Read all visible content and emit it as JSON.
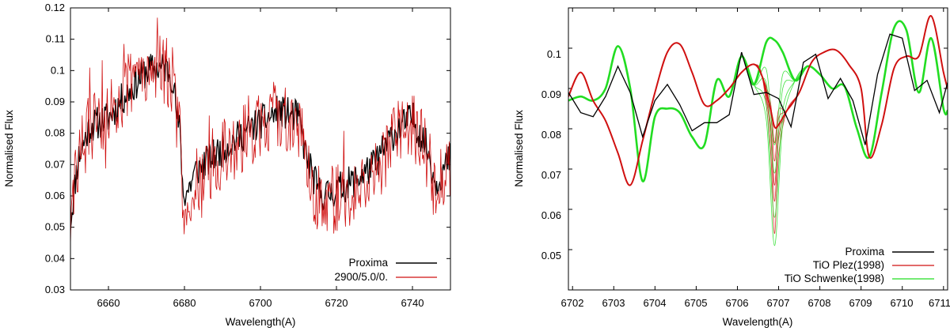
{
  "colors": {
    "black": "#000000",
    "red": "#d01010",
    "green": "#22dd22",
    "frame": "#000000"
  },
  "chart_data": [
    {
      "id": "left",
      "type": "line",
      "title": "",
      "xlabel": "Wavelength(A)",
      "ylabel": "Normalised Flux",
      "xlim": [
        6650,
        6750
      ],
      "ylim": [
        0.03,
        0.12
      ],
      "xticks": [
        6660,
        6680,
        6700,
        6720,
        6740
      ],
      "xtick_labels": [
        "6660",
        "6680",
        "6700",
        "6720",
        "6740"
      ],
      "yticks": [
        0.03,
        0.04,
        0.05,
        0.06,
        0.07,
        0.08,
        0.09,
        0.1,
        0.11,
        0.12
      ],
      "ytick_labels": [
        "0.03",
        "0.04",
        "0.05",
        "0.06",
        "0.07",
        "0.08",
        "0.09",
        "0.1",
        "0.11",
        "0.12"
      ],
      "legend_position": "bottom-right",
      "series": [
        {
          "name": "Proxima",
          "color": "#000000",
          "anchors": [
            [
              6650,
              0.052
            ],
            [
              6652,
              0.072
            ],
            [
              6655,
              0.082
            ],
            [
              6660,
              0.085
            ],
            [
              6665,
              0.093
            ],
            [
              6670,
              0.1
            ],
            [
              6675,
              0.101
            ],
            [
              6677,
              0.098
            ],
            [
              6678,
              0.085
            ],
            [
              6679,
              0.079
            ],
            [
              6679.6,
              0.06
            ],
            [
              6681,
              0.062
            ],
            [
              6683,
              0.068
            ],
            [
              6690,
              0.075
            ],
            [
              6698,
              0.082
            ],
            [
              6705,
              0.087
            ],
            [
              6710,
              0.085
            ],
            [
              6712,
              0.073
            ],
            [
              6715,
              0.062
            ],
            [
              6717,
              0.06
            ],
            [
              6720,
              0.062
            ],
            [
              6725,
              0.065
            ],
            [
              6730,
              0.07
            ],
            [
              6735,
              0.08
            ],
            [
              6740,
              0.085
            ],
            [
              6744,
              0.075
            ],
            [
              6746,
              0.064
            ],
            [
              6750,
              0.072
            ]
          ],
          "noise": 0.0055,
          "seed": 11
        },
        {
          "name": "2900/5.0/0.",
          "color": "#d01010",
          "anchors": [
            [
              6650,
              0.05
            ],
            [
              6652,
              0.072
            ],
            [
              6655,
              0.082
            ],
            [
              6660,
              0.086
            ],
            [
              6665,
              0.095
            ],
            [
              6670,
              0.102
            ],
            [
              6675,
              0.1
            ],
            [
              6677,
              0.096
            ],
            [
              6678,
              0.085
            ],
            [
              6679,
              0.077
            ],
            [
              6679.6,
              0.058
            ],
            [
              6681,
              0.06
            ],
            [
              6683,
              0.066
            ],
            [
              6690,
              0.073
            ],
            [
              6698,
              0.081
            ],
            [
              6705,
              0.086
            ],
            [
              6710,
              0.084
            ],
            [
              6712,
              0.07
            ],
            [
              6715,
              0.06
            ],
            [
              6717,
              0.057
            ],
            [
              6720,
              0.06
            ],
            [
              6725,
              0.063
            ],
            [
              6730,
              0.068
            ],
            [
              6735,
              0.078
            ],
            [
              6740,
              0.082
            ],
            [
              6744,
              0.073
            ],
            [
              6746,
              0.062
            ],
            [
              6750,
              0.07
            ]
          ],
          "noise": 0.0115,
          "seed": 29
        }
      ]
    },
    {
      "id": "right",
      "type": "line",
      "title": "",
      "xlabel": "Wavelength(A)",
      "ylabel": "Normalised Flux",
      "xlim": [
        6701.9,
        6711.1
      ],
      "ylim": [
        0.04,
        0.11
      ],
      "xticks": [
        6702,
        6703,
        6704,
        6705,
        6706,
        6707,
        6708,
        6709,
        6710,
        6711
      ],
      "xtick_labels": [
        "6702",
        "6703",
        "6704",
        "6705",
        "6706",
        "6707",
        "6708",
        "6709",
        "6710",
        "6711"
      ],
      "yticks": [
        0.05,
        0.06,
        0.07,
        0.08,
        0.09,
        0.1
      ],
      "ytick_labels": [
        "0.05",
        "0.06",
        "0.07",
        "0.08",
        "0.09",
        "0.1"
      ],
      "legend_position": "bottom-right",
      "series": [
        {
          "name": "Proxima",
          "color": "#000000",
          "x": [
            6701.9,
            6702.2,
            6702.5,
            6702.8,
            6703.1,
            6703.4,
            6703.7,
            6704.0,
            6704.3,
            6704.6,
            6704.9,
            6705.2,
            6705.5,
            6705.8,
            6706.1,
            6706.4,
            6706.7,
            6707.0,
            6707.3,
            6707.6,
            6707.9,
            6708.2,
            6708.5,
            6708.8,
            6709.1,
            6709.4,
            6709.7,
            6710.0,
            6710.3,
            6710.6,
            6710.9,
            6711.1
          ],
          "y": [
            0.089,
            0.084,
            0.083,
            0.088,
            0.0955,
            0.089,
            0.078,
            0.087,
            0.091,
            0.086,
            0.0795,
            0.0815,
            0.0815,
            0.0835,
            0.099,
            0.0885,
            0.089,
            0.0875,
            0.0805,
            0.0965,
            0.0985,
            0.0875,
            0.0925,
            0.087,
            0.076,
            0.0935,
            0.1035,
            0.1025,
            0.0895,
            0.092,
            0.084,
            0.0915
          ]
        },
        {
          "name": "TiO Plez(1998)",
          "color": "#d01010",
          "x": [
            6701.9,
            6702.2,
            6702.5,
            6702.8,
            6703.1,
            6703.4,
            6703.7,
            6704.0,
            6704.3,
            6704.6,
            6704.9,
            6705.2,
            6705.5,
            6705.8,
            6706.1,
            6706.4,
            6706.6,
            6706.8,
            6706.9,
            6707.0,
            6707.2,
            6707.5,
            6707.8,
            6708.1,
            6708.4,
            6708.7,
            6709.0,
            6709.2,
            6709.5,
            6709.8,
            6710.1,
            6710.4,
            6710.7,
            6711.0,
            6711.1
          ],
          "y": [
            0.088,
            0.094,
            0.087,
            0.082,
            0.074,
            0.066,
            0.077,
            0.089,
            0.099,
            0.101,
            0.094,
            0.086,
            0.087,
            0.09,
            0.094,
            0.096,
            0.093,
            0.085,
            0.0805,
            0.081,
            0.0845,
            0.089,
            0.0965,
            0.099,
            0.0995,
            0.096,
            0.09,
            0.073,
            0.081,
            0.095,
            0.098,
            0.098,
            0.108,
            0.094,
            0.09
          ],
          "variants": [
            [
              6706.9,
              0.054
            ],
            [
              6706.9,
              0.062
            ],
            [
              6706.9,
              0.066
            ],
            [
              6706.9,
              0.072
            ],
            [
              6706.9,
              0.0765
            ]
          ]
        },
        {
          "name": "TiO Schwenke(1998)",
          "color": "#22dd22",
          "x": [
            6701.9,
            6702.2,
            6702.5,
            6702.8,
            6703.1,
            6703.4,
            6703.7,
            6704.0,
            6704.3,
            6704.6,
            6704.9,
            6705.2,
            6705.5,
            6705.8,
            6706.1,
            6706.4,
            6706.7,
            6706.9,
            6707.1,
            6707.4,
            6707.7,
            6708.0,
            6708.3,
            6708.6,
            6708.9,
            6709.2,
            6709.5,
            6709.8,
            6710.1,
            6710.4,
            6710.7,
            6711.0,
            6711.1
          ],
          "y": [
            0.087,
            0.088,
            0.087,
            0.09,
            0.1005,
            0.09,
            0.067,
            0.083,
            0.085,
            0.084,
            0.078,
            0.076,
            0.092,
            0.088,
            0.098,
            0.091,
            0.1015,
            0.102,
            0.099,
            0.092,
            0.0955,
            0.0935,
            0.09,
            0.0905,
            0.08,
            0.073,
            0.089,
            0.105,
            0.1045,
            0.089,
            0.1025,
            0.085,
            0.0845
          ],
          "variants": [
            [
              6706.85,
              0.051
            ],
            [
              6706.85,
              0.058
            ],
            [
              6706.85,
              0.069
            ],
            [
              6706.85,
              0.076
            ]
          ]
        }
      ]
    }
  ]
}
